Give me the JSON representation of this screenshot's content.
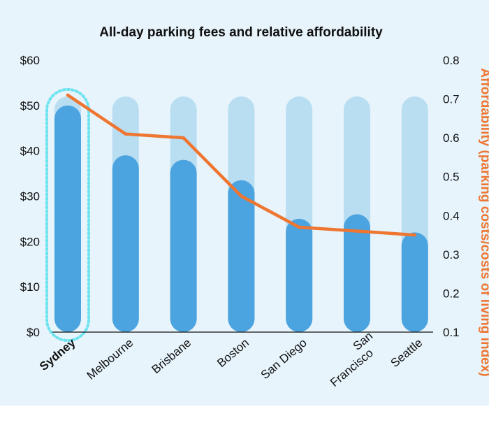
{
  "chart_data": {
    "type": "bar",
    "title": "All-day parking fees and relative affordability",
    "categories": [
      "Sydney",
      "Melbourne",
      "Brisbane",
      "Boston",
      "San Diego",
      "San Francisco",
      "Seattle"
    ],
    "highlighted_category": "Sydney",
    "series": [
      {
        "name": "All-day parking fee",
        "type": "bar",
        "axis": "left",
        "values": [
          50,
          39,
          38,
          33.5,
          25,
          26,
          22
        ]
      },
      {
        "name": "Affordability (parking costs/costs of living index)",
        "type": "line",
        "axis": "right",
        "values": [
          0.71,
          0.61,
          0.6,
          0.45,
          0.37,
          0.36,
          0.35
        ]
      }
    ],
    "left_axis": {
      "min": 0,
      "max": 60,
      "step": 10,
      "tick_labels": [
        "$0",
        "$10",
        "$20",
        "$30",
        "$40",
        "$50",
        "$60"
      ]
    },
    "right_axis": {
      "label": "Affordability (parking costs/costs of living index)",
      "min": 0.1,
      "max": 0.8,
      "step": 0.1,
      "tick_labels": [
        "0.1",
        "0.2",
        "0.3",
        "0.4",
        "0.5",
        "0.6",
        "0.7",
        "0.8"
      ]
    },
    "background_bar_max": 52,
    "grid": false,
    "colors": {
      "background": "#e7f4fb",
      "bar": "#4ba3df",
      "bar_track": "#b9def2",
      "line": "#ee7631",
      "highlight_outline": "#6ee3f0",
      "left_axis_text": "#2e9bd6",
      "right_axis_text": "#ee7631",
      "text": "#111111"
    }
  }
}
